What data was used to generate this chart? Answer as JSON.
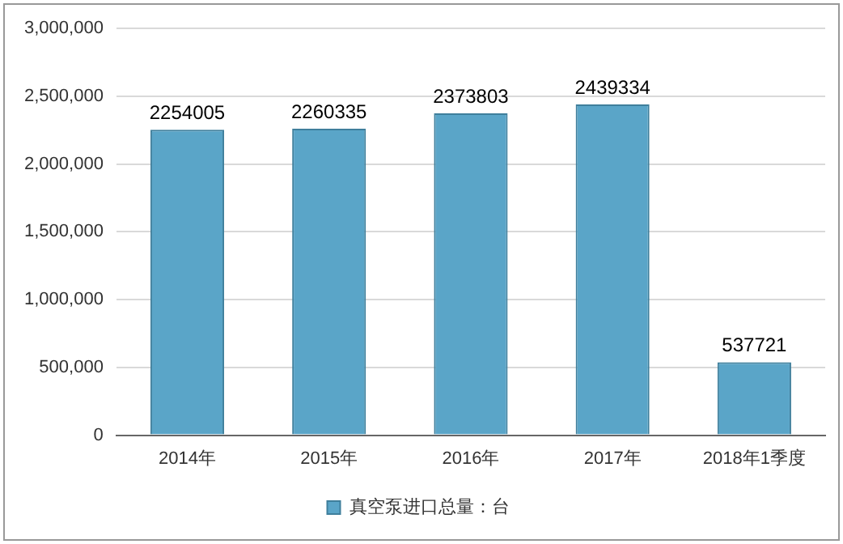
{
  "chart_data": {
    "type": "bar",
    "categories": [
      "2014年",
      "2015年",
      "2016年",
      "2017年",
      "2018年1季度"
    ],
    "series": [
      {
        "name": "真空泵进口总量：台",
        "color": "#5aa5c8",
        "values": [
          2254005,
          2260335,
          2373803,
          2439334,
          537721
        ]
      }
    ],
    "ylim": [
      0,
      3000000
    ],
    "yticks": [
      0,
      {
        "value": 500000,
        "label": "500,000"
      },
      {
        "value": 1000000,
        "label": "1,000,000"
      },
      {
        "value": 1500000,
        "label": "1,500,000"
      },
      {
        "value": 2000000,
        "label": "2,000,000"
      },
      {
        "value": 2500000,
        "label": "2,500,000"
      },
      {
        "value": 3000000,
        "label": "3,000,000"
      }
    ],
    "grid": "y",
    "legend": "bottom",
    "data_labels": true
  }
}
